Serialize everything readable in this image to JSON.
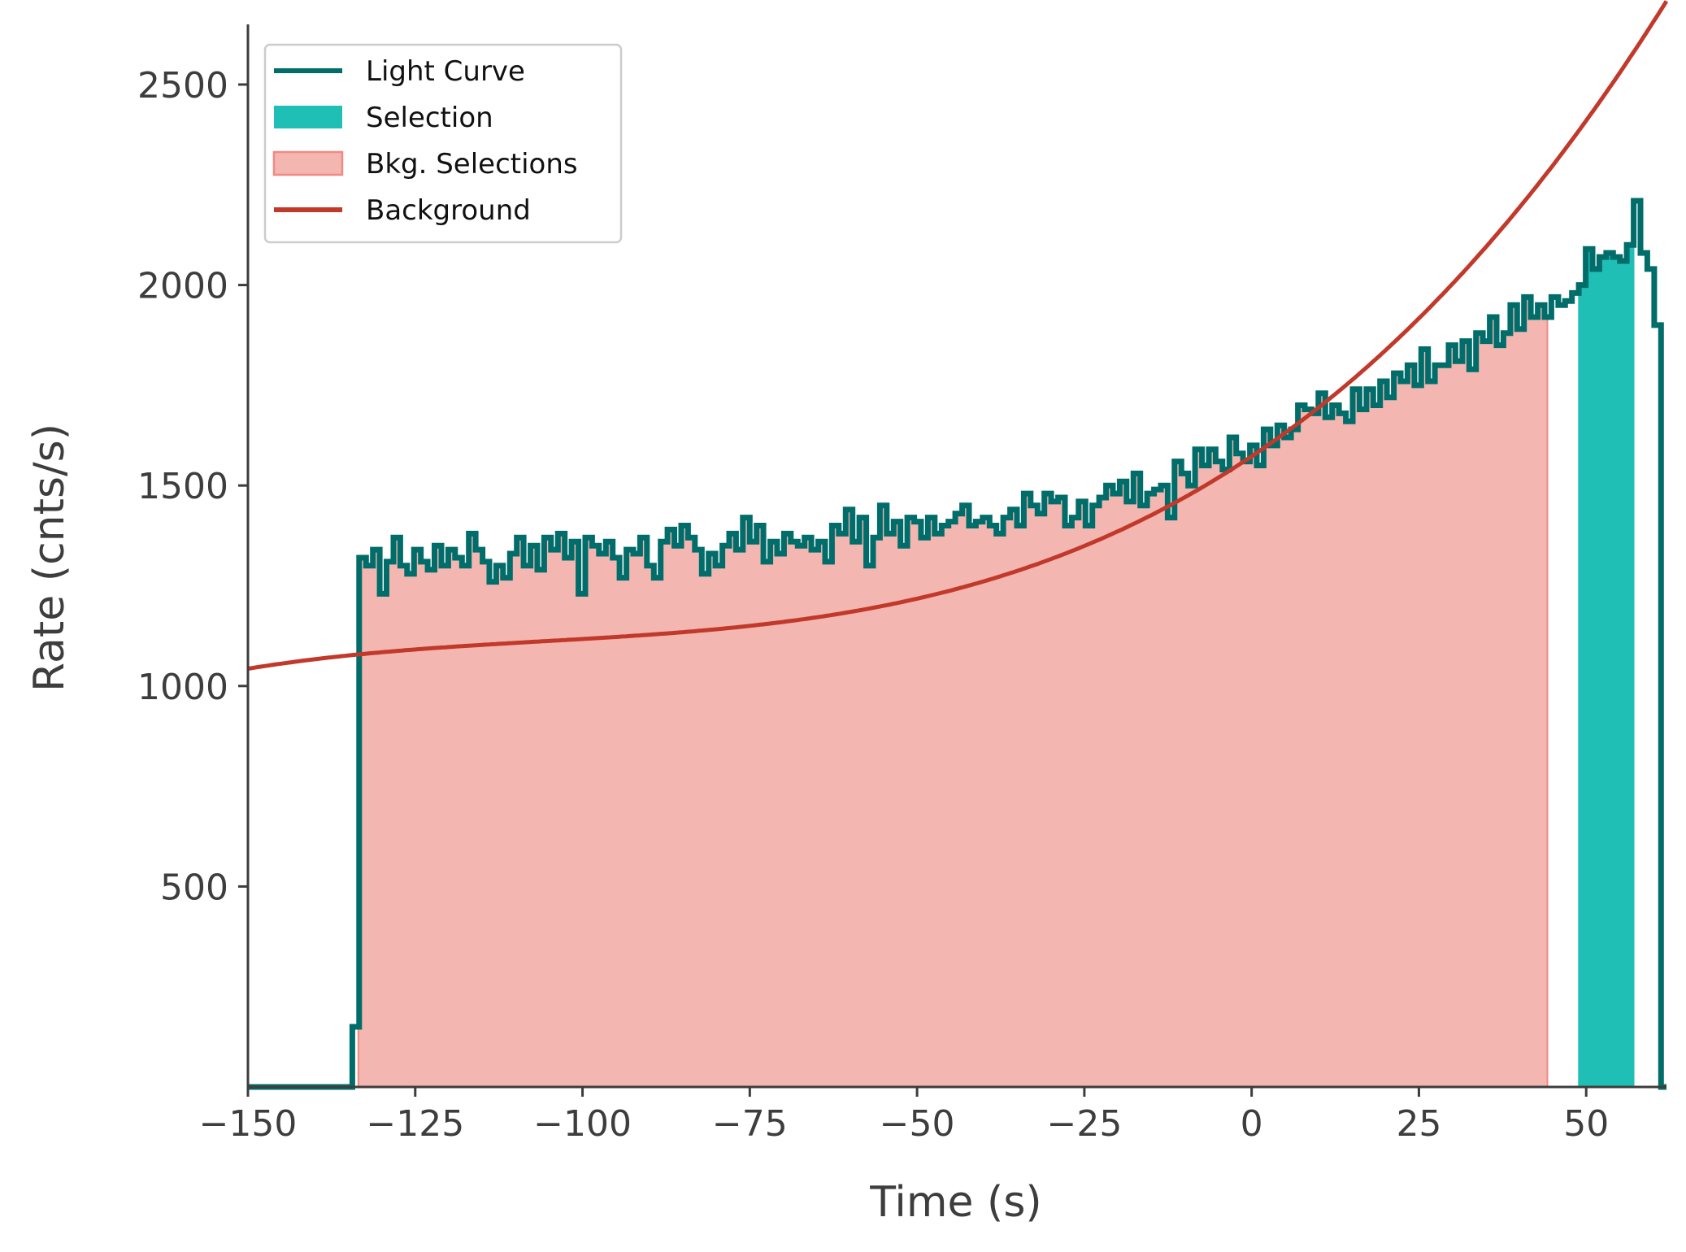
{
  "chart_data": {
    "type": "line",
    "title": "",
    "xlabel": "Time (s)",
    "ylabel": "Rate (cnts/s)",
    "xlim": [
      -150,
      62
    ],
    "ylim": [
      0,
      2650
    ],
    "xticks": [
      -150,
      -125,
      -100,
      -75,
      -50,
      -25,
      0,
      25,
      50
    ],
    "xtick_labels": [
      "−150",
      "−125",
      "−100",
      "−75",
      "−50",
      "−25",
      "0",
      "25",
      "50"
    ],
    "yticks": [
      500,
      1000,
      1500,
      2000,
      2500
    ],
    "ytick_labels": [
      "500",
      "1000",
      "1500",
      "2000",
      "2500"
    ],
    "grid": false,
    "legend_position": "top-left",
    "legend": [
      {
        "label": "Light Curve",
        "kind": "line",
        "color": "#006d6a"
      },
      {
        "label": "Selection",
        "kind": "patch",
        "color": "#1fbfb6"
      },
      {
        "label": "Bkg. Selections",
        "kind": "patch",
        "color": "#f4b6b0",
        "edge": "#f08a82"
      },
      {
        "label": "Background",
        "kind": "line",
        "color": "#c1392b"
      }
    ],
    "series": [
      {
        "name": "Light Curve",
        "style": "step",
        "color": "#006d6a",
        "bin_width": 1.024,
        "x_start": -134.4,
        "x_end": 59.6,
        "level_before": 0,
        "level_after": 0,
        "values": [
          150,
          1320,
          1300,
          1340,
          1230,
          1310,
          1370,
          1300,
          1280,
          1340,
          1310,
          1290,
          1350,
          1300,
          1340,
          1320,
          1300,
          1380,
          1340,
          1310,
          1260,
          1300,
          1270,
          1330,
          1370,
          1300,
          1350,
          1290,
          1370,
          1340,
          1380,
          1320,
          1360,
          1230,
          1370,
          1350,
          1330,
          1360,
          1320,
          1270,
          1340,
          1330,
          1370,
          1300,
          1270,
          1360,
          1390,
          1350,
          1400,
          1370,
          1340,
          1280,
          1330,
          1300,
          1350,
          1380,
          1340,
          1420,
          1360,
          1400,
          1310,
          1360,
          1330,
          1380,
          1360,
          1350,
          1370,
          1340,
          1360,
          1310,
          1400,
          1380,
          1440,
          1360,
          1420,
          1300,
          1370,
          1450,
          1380,
          1410,
          1350,
          1420,
          1410,
          1370,
          1420,
          1380,
          1400,
          1410,
          1430,
          1450,
          1400,
          1410,
          1420,
          1400,
          1380,
          1420,
          1440,
          1400,
          1480,
          1450,
          1430,
          1480,
          1460,
          1470,
          1400,
          1420,
          1460,
          1400,
          1450,
          1470,
          1500,
          1480,
          1510,
          1460,
          1530,
          1450,
          1480,
          1490,
          1500,
          1420,
          1560,
          1530,
          1500,
          1590,
          1550,
          1590,
          1560,
          1540,
          1620,
          1580,
          1560,
          1600,
          1550,
          1640,
          1600,
          1650,
          1620,
          1640,
          1700,
          1690,
          1680,
          1730,
          1670,
          1700,
          1680,
          1660,
          1740,
          1690,
          1740,
          1700,
          1760,
          1720,
          1780,
          1760,
          1800,
          1750,
          1840,
          1760,
          1800,
          1800,
          1850,
          1810,
          1860,
          1790,
          1880,
          1860,
          1920,
          1850,
          1880,
          1950,
          1890,
          1970,
          1920,
          1950,
          1920,
          1970,
          1950,
          1960,
          1980,
          2000,
          2090,
          2040,
          2070,
          2080,
          2070,
          2060,
          2100,
          2210,
          2080,
          2040,
          1900
        ]
      },
      {
        "name": "Background",
        "style": "line",
        "color": "#c1392b",
        "x_range": [
          -150,
          62
        ],
        "polynomial_coefficients": [
          1572.8,
          11.1624,
          0.096452,
          0.00030385
        ]
      }
    ],
    "selection_interval": [
      48.8,
      57.2
    ],
    "background_selection_interval": [
      -133.5,
      44.2
    ]
  }
}
